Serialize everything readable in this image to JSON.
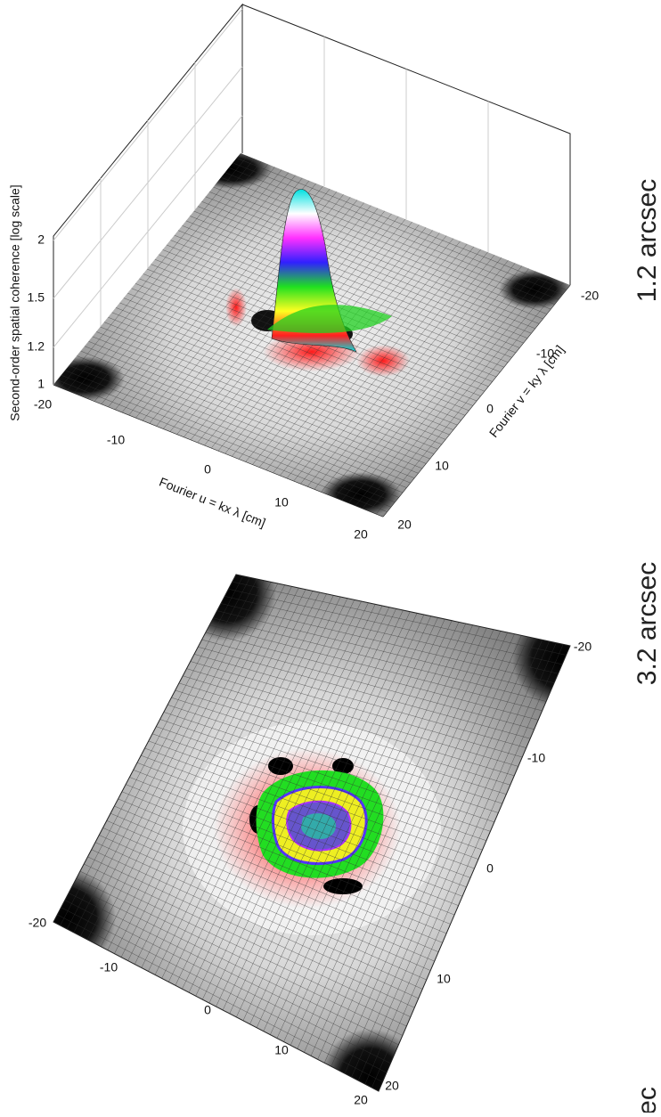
{
  "panels": [
    {
      "side_label": "1.2 arcsec",
      "z_axis_label": "Second-order spatial coherence [log scale]",
      "z_ticks": [
        "2",
        "1.5",
        "1.2",
        "1"
      ],
      "u_axis_label": "Fourier u = kx λ [cm]",
      "u_ticks": [
        "-20",
        "-10",
        "0",
        "10",
        "20"
      ],
      "v_axis_label": "Fourier v = ky λ [cm]",
      "v_ticks": [
        "-20",
        "-10",
        "0",
        "10",
        "20"
      ]
    },
    {
      "side_label": "3.2 arcsec",
      "u_ticks": [
        "-20",
        "-10",
        "0",
        "10",
        "20"
      ],
      "v_ticks": [
        "-20",
        "-10",
        "0",
        "10",
        "20"
      ]
    },
    {
      "side_label": "ec"
    }
  ]
}
